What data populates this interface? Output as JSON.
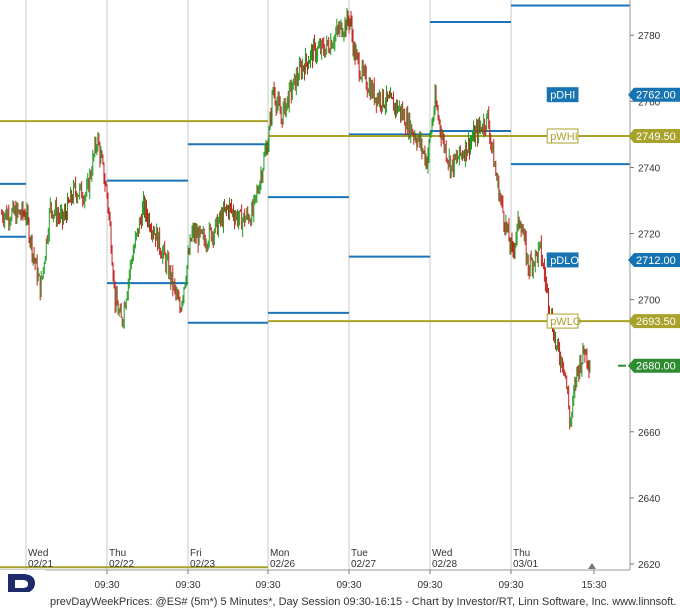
{
  "chart_data": {
    "type": "candlestick",
    "yaxis": {
      "ticks": [
        2620,
        2640,
        2660,
        2680,
        2700,
        2720,
        2740,
        2760,
        2780
      ],
      "range": [
        2618,
        2798
      ],
      "side": "right"
    },
    "days": [
      {
        "weekday": "Wed",
        "date": "02/21"
      },
      {
        "weekday": "Thu",
        "date": "02/22"
      },
      {
        "weekday": "Fri",
        "date": "02/23"
      },
      {
        "weekday": "Mon",
        "date": "02/26"
      },
      {
        "weekday": "Tue",
        "date": "02/27"
      },
      {
        "weekday": "Wed",
        "date": "02/28"
      },
      {
        "weekday": "Thu",
        "date": "03/01"
      }
    ],
    "time_labels": [
      "09:30",
      "09:30",
      "09:30",
      "09:30",
      "09:30",
      "09:30",
      "09:30",
      "15:30"
    ],
    "price_path": [
      [
        0,
        2726
      ],
      [
        0.08,
        2715
      ],
      [
        0.18,
        2703
      ],
      [
        0.3,
        2728
      ],
      [
        0.45,
        2724
      ],
      [
        0.6,
        2733
      ],
      [
        0.75,
        2732
      ],
      [
        0.88,
        2749
      ],
      [
        1.0,
        2732
      ],
      [
        1.05,
        2718
      ],
      [
        1.1,
        2700
      ],
      [
        1.18,
        2693
      ],
      [
        1.3,
        2712
      ],
      [
        1.45,
        2728
      ],
      [
        1.6,
        2720
      ],
      [
        1.75,
        2710
      ],
      [
        1.9,
        2697
      ],
      [
        2.0,
        2712
      ],
      [
        2.05,
        2720
      ],
      [
        2.2,
        2718
      ],
      [
        2.35,
        2722
      ],
      [
        2.5,
        2728
      ],
      [
        2.65,
        2724
      ],
      [
        2.8,
        2726
      ],
      [
        2.9,
        2738
      ],
      [
        3.0,
        2750
      ],
      [
        3.05,
        2764
      ],
      [
        3.15,
        2755
      ],
      [
        3.25,
        2762
      ],
      [
        3.4,
        2770
      ],
      [
        3.55,
        2775
      ],
      [
        3.7,
        2776
      ],
      [
        3.85,
        2781
      ],
      [
        4.0,
        2785
      ],
      [
        4.05,
        2775
      ],
      [
        4.15,
        2768
      ],
      [
        4.3,
        2762
      ],
      [
        4.45,
        2760
      ],
      [
        4.6,
        2758
      ],
      [
        4.75,
        2752
      ],
      [
        4.85,
        2748
      ],
      [
        4.95,
        2742
      ],
      [
        5.05,
        2760
      ],
      [
        5.15,
        2748
      ],
      [
        5.25,
        2740
      ],
      [
        5.4,
        2745
      ],
      [
        5.55,
        2750
      ],
      [
        5.7,
        2755
      ],
      [
        5.8,
        2738
      ],
      [
        5.9,
        2725
      ],
      [
        6.0,
        2714
      ],
      [
        6.1,
        2725
      ],
      [
        6.2,
        2710
      ],
      [
        6.35,
        2715
      ],
      [
        6.45,
        2700
      ],
      [
        6.55,
        2685
      ],
      [
        6.65,
        2680
      ],
      [
        6.72,
        2662
      ],
      [
        6.8,
        2678
      ],
      [
        6.9,
        2685
      ],
      [
        6.97,
        2680
      ]
    ],
    "levels": [
      {
        "label": "pDHI",
        "value": 2762.0,
        "color": "#1b74b8",
        "badge": "2762.00"
      },
      {
        "label": "pWHI",
        "value": 2749.5,
        "color": "#a9a22a",
        "badge": "2749.50"
      },
      {
        "label": "pDLO",
        "value": 2712.0,
        "color": "#1b74b8",
        "badge": "2712.00"
      },
      {
        "label": "pWLO",
        "value": 2693.5,
        "color": "#a9a22a",
        "badge": "2693.50"
      }
    ],
    "last_price": {
      "value": 2680.0,
      "badge": "2680.00",
      "color": "#2e8b30"
    },
    "daily_highs": [
      2736,
      2747,
      2731,
      2750,
      2784,
      2789,
      2762
    ],
    "daily_lows": [
      2705,
      2693,
      2696,
      2713,
      2751,
      2741,
      2712
    ],
    "weekly": {
      "prev_high": 2754,
      "prev_low": 2619,
      "high": 2749.5,
      "low": 2693.5
    }
  },
  "footer": {
    "text": "prevDayWeekPrices: @ES# (5m*) 5 Minutes*, Day Session 09:30-16:15 - Chart by Investor/RT, Linn Software, Inc. www.linnsoft."
  },
  "colors": {
    "up": "#1f9a1f",
    "down": "#c0201c",
    "grid": "#c8c8c8",
    "blue_level": "#1b74b8",
    "olive_level": "#a9a22a"
  }
}
